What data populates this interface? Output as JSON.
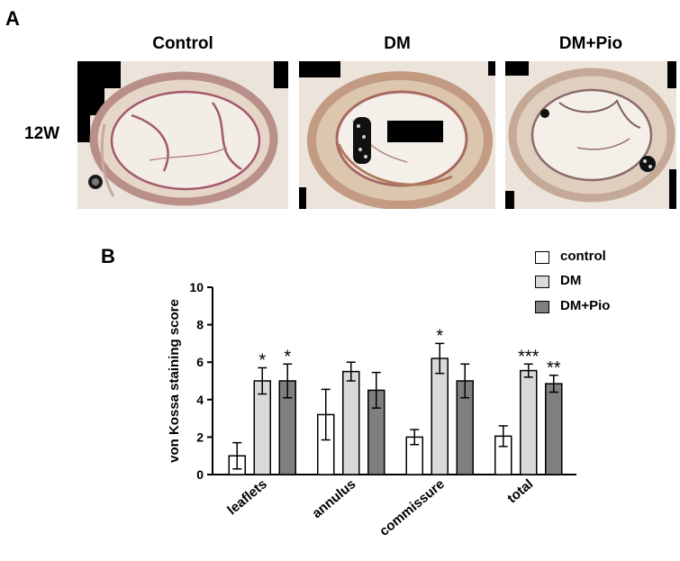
{
  "panel_a": {
    "label": "A",
    "row_label": "12W",
    "columns": [
      "Control",
      "DM",
      "DM+Pio"
    ]
  },
  "panel_b": {
    "label": "B"
  },
  "chart_data": {
    "type": "bar",
    "ylabel": "von Kossa staining score",
    "ylim": [
      0,
      10
    ],
    "yticks": [
      0,
      2,
      4,
      6,
      8,
      10
    ],
    "categories": [
      "leaflets",
      "annulus",
      "commissure",
      "total"
    ],
    "series": [
      {
        "name": "control",
        "color": "#ffffff",
        "values": [
          1.0,
          3.2,
          2.0,
          2.05
        ],
        "errors": [
          0.7,
          1.35,
          0.4,
          0.55
        ],
        "significance": [
          "",
          "",
          "",
          ""
        ]
      },
      {
        "name": "DM",
        "color": "#d9d9d9",
        "values": [
          5.0,
          5.5,
          6.2,
          5.55
        ],
        "errors": [
          0.7,
          0.5,
          0.8,
          0.35
        ],
        "significance": [
          "*",
          "",
          "*",
          "***"
        ]
      },
      {
        "name": "DM+Pio",
        "color": "#7f7f7f",
        "values": [
          5.0,
          4.5,
          5.0,
          4.85
        ],
        "errors": [
          0.9,
          0.95,
          0.9,
          0.45
        ],
        "significance": [
          "*",
          "",
          "",
          "**"
        ]
      }
    ],
    "legend_position": "top-right"
  }
}
